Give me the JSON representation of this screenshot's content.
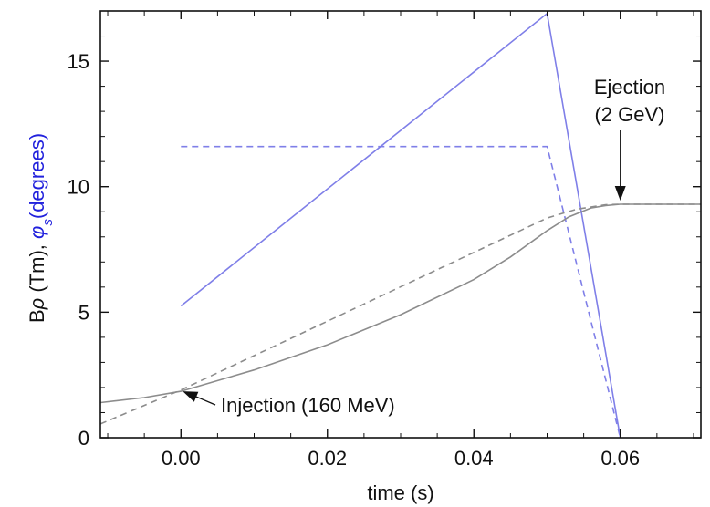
{
  "chart_data": {
    "type": "line",
    "title": "",
    "xlabel": "time (s)",
    "ylabel_parts": [
      {
        "text": "B",
        "color": "#111111"
      },
      {
        "text": "ρ",
        "color": "#111111",
        "italic": true
      },
      {
        "text": " (Tm), ",
        "color": "#111111"
      },
      {
        "text": "φ",
        "color": "#2222dd",
        "italic": true
      },
      {
        "text": "s",
        "color": "#2222dd",
        "italic": true,
        "sub": true
      },
      {
        "text": "(degrees)",
        "color": "#2222dd"
      }
    ],
    "xlim": [
      -0.011,
      0.071
    ],
    "ylim": [
      0,
      17
    ],
    "x_ticks": [
      0.0,
      0.02,
      0.04,
      0.06
    ],
    "x_tick_labels": [
      "0.00",
      "0.02",
      "0.04",
      "0.06"
    ],
    "y_ticks": [
      0,
      5,
      10,
      15
    ],
    "y_tick_labels": [
      "0",
      "5",
      "10",
      "15"
    ],
    "grid": false,
    "legend": "none",
    "series": [
      {
        "style": "solid",
        "color": "#7f7fe8",
        "x": [
          0.0,
          0.05,
          0.06
        ],
        "y": [
          5.25,
          16.9,
          0.0
        ]
      },
      {
        "style": "dashed",
        "color": "#7f7fe8",
        "x": [
          0.0,
          0.05,
          0.06
        ],
        "y": [
          11.6,
          11.6,
          0.0
        ]
      },
      {
        "style": "solid",
        "color": "#8c8c8c",
        "x": [
          -0.011,
          -0.005,
          0.0,
          0.01,
          0.02,
          0.03,
          0.04,
          0.045,
          0.05,
          0.053,
          0.056,
          0.058,
          0.06,
          0.065,
          0.071
        ],
        "y": [
          1.4,
          1.6,
          1.85,
          2.7,
          3.7,
          4.9,
          6.3,
          7.2,
          8.25,
          8.8,
          9.15,
          9.25,
          9.3,
          9.3,
          9.3
        ]
      },
      {
        "style": "dashed",
        "color": "#8c8c8c",
        "x": [
          -0.011,
          0.0,
          0.05,
          0.054,
          0.058,
          0.06,
          0.071
        ],
        "y": [
          0.55,
          1.9,
          8.75,
          9.1,
          9.28,
          9.3,
          9.3
        ]
      }
    ],
    "annotations": [
      {
        "lines": [
          "Injection (160 MeV)"
        ],
        "point": [
          0.0,
          1.85
        ]
      },
      {
        "lines": [
          "Ejection",
          "(2 GeV)"
        ],
        "point": [
          0.06,
          9.3
        ]
      }
    ]
  }
}
